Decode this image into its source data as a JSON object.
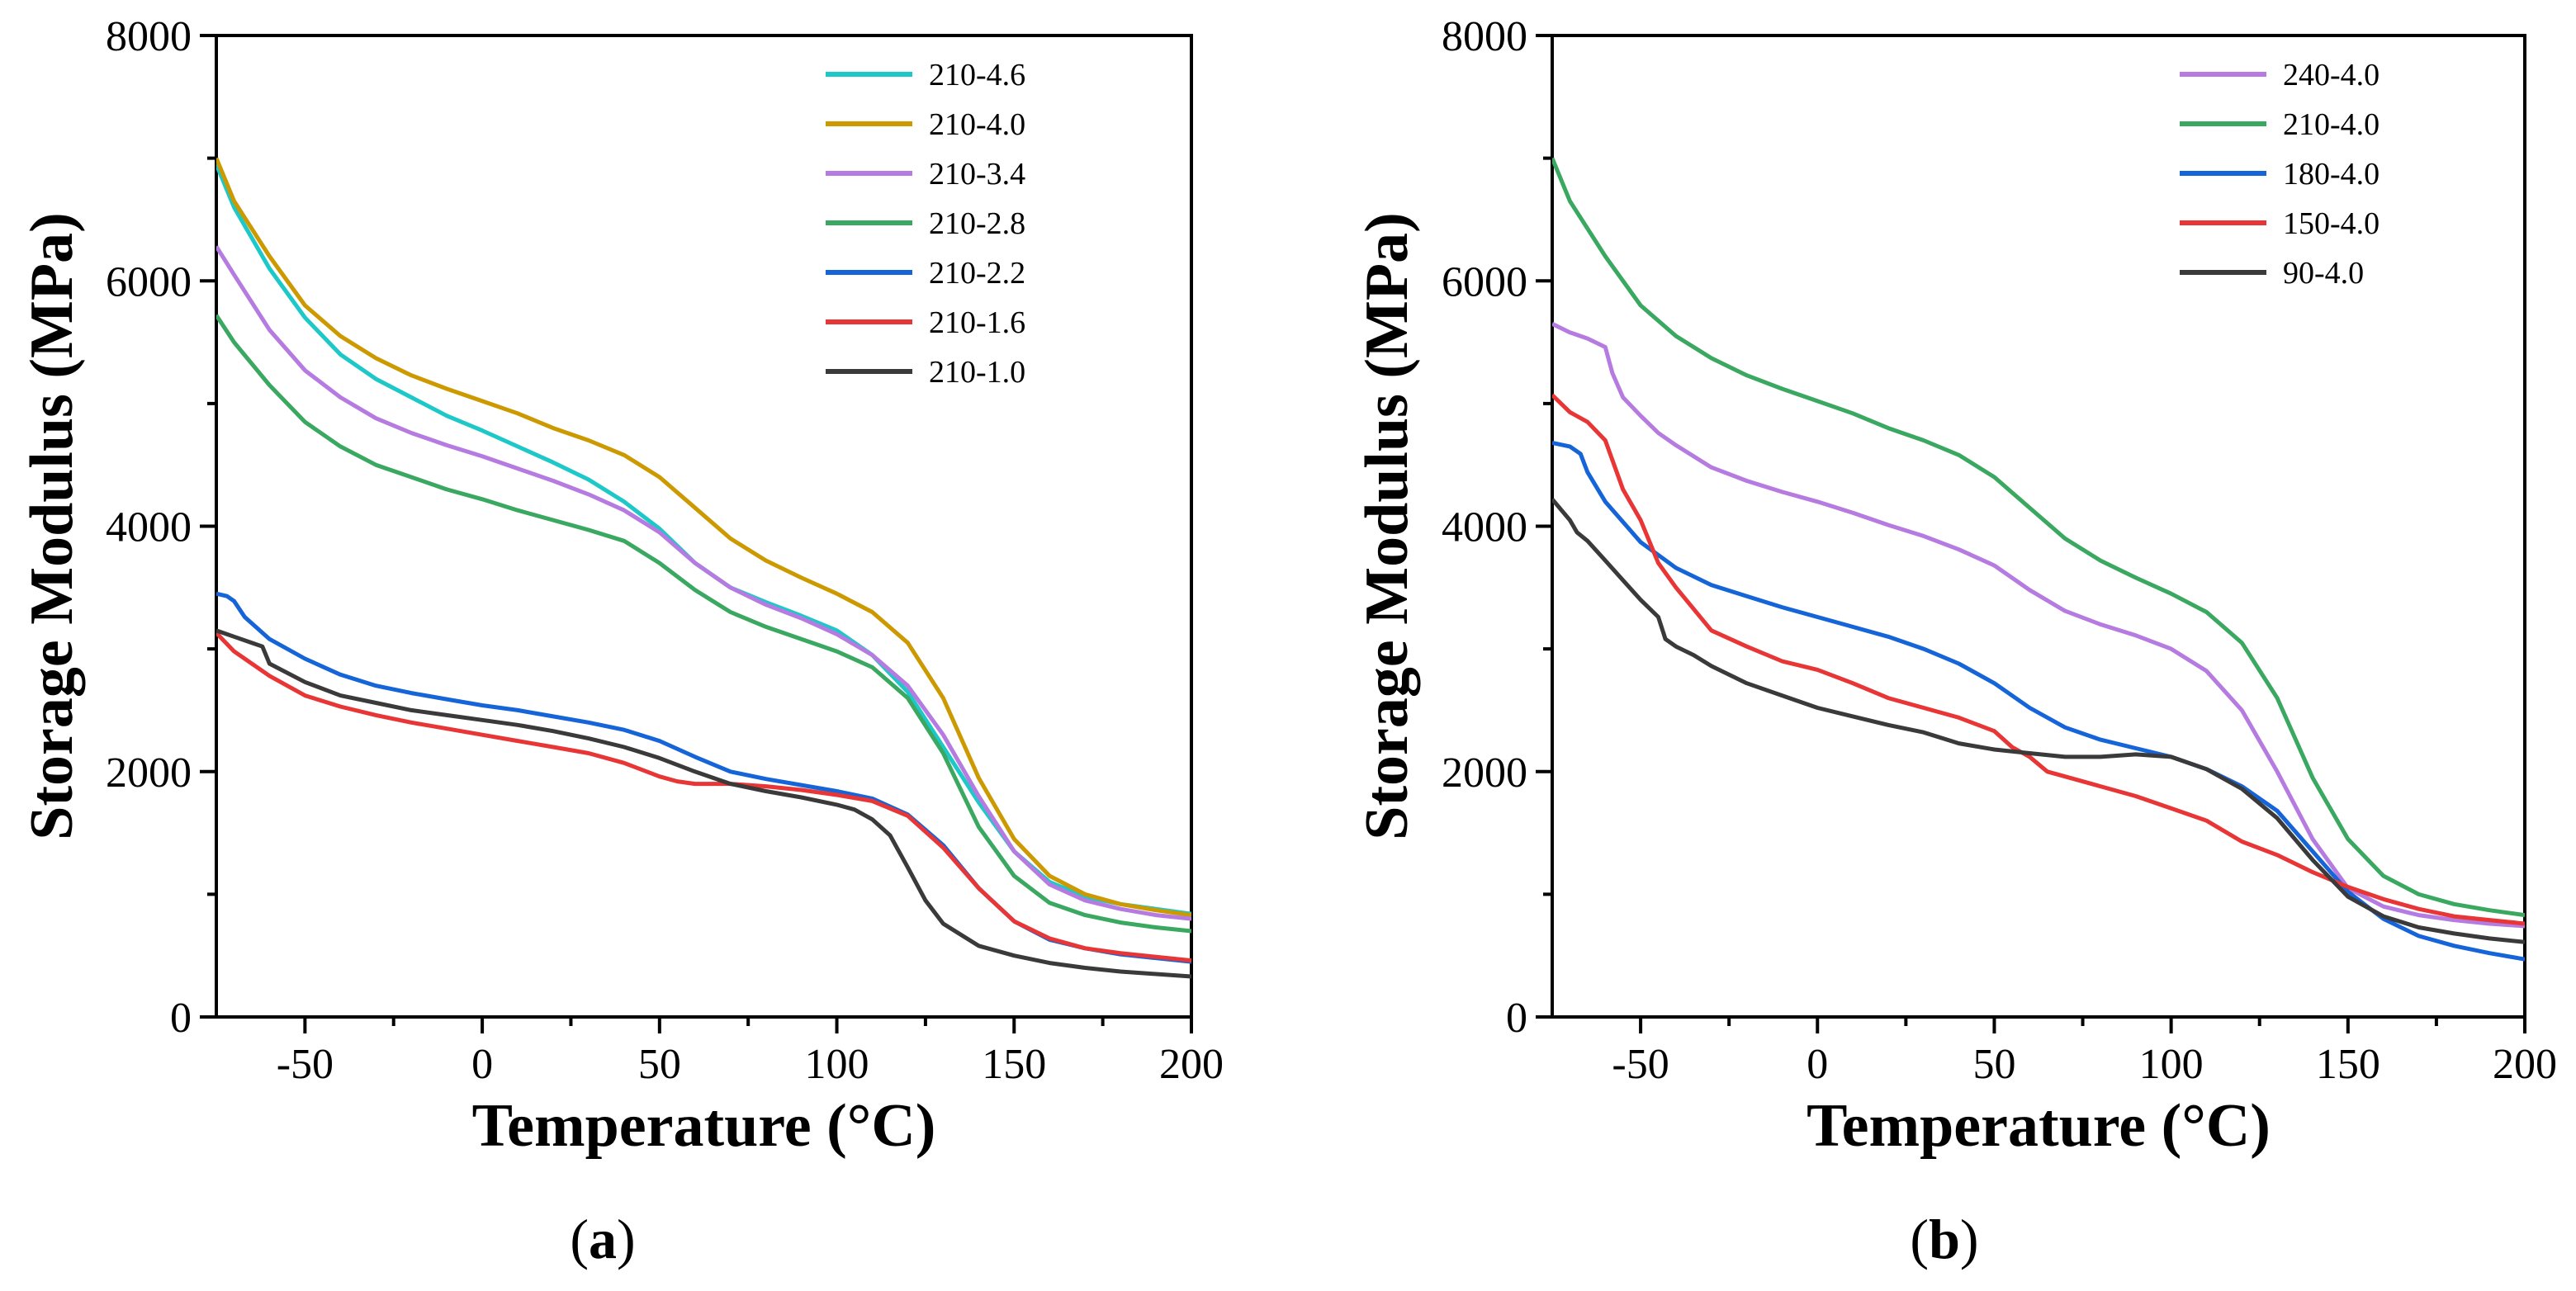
{
  "chart_data": [
    {
      "type": "line",
      "panel_label": "a",
      "xlabel": "Temperature (°C)",
      "ylabel": "Storage Modulus (MPa)",
      "xlim": [
        -75,
        200
      ],
      "ylim": [
        0,
        8000
      ],
      "xticks": [
        -50,
        0,
        50,
        100,
        150,
        200
      ],
      "yticks": [
        0,
        2000,
        4000,
        6000,
        8000
      ],
      "legend_position": "top-right",
      "series": [
        {
          "name": "210-4.6",
          "color": "#1ec8c8",
          "x": [
            -75,
            -70,
            -60,
            -50,
            -40,
            -30,
            -20,
            -10,
            0,
            10,
            20,
            30,
            40,
            50,
            60,
            70,
            80,
            90,
            100,
            110,
            120,
            130,
            140,
            150,
            160,
            170,
            180,
            190,
            200
          ],
          "y": [
            6950,
            6600,
            6100,
            5700,
            5400,
            5200,
            5050,
            4900,
            4780,
            4650,
            4520,
            4380,
            4200,
            3980,
            3700,
            3500,
            3380,
            3270,
            3150,
            2950,
            2650,
            2200,
            1750,
            1350,
            1100,
            980,
            920,
            880,
            840
          ]
        },
        {
          "name": "210-4.0",
          "color": "#cc9900",
          "x": [
            -75,
            -70,
            -60,
            -50,
            -40,
            -30,
            -20,
            -10,
            0,
            10,
            20,
            30,
            40,
            50,
            60,
            70,
            80,
            90,
            100,
            110,
            120,
            130,
            140,
            150,
            160,
            170,
            180,
            190,
            200
          ],
          "y": [
            7000,
            6650,
            6200,
            5800,
            5550,
            5370,
            5230,
            5120,
            5020,
            4920,
            4800,
            4700,
            4580,
            4400,
            4150,
            3900,
            3720,
            3580,
            3450,
            3300,
            3050,
            2600,
            1950,
            1450,
            1150,
            1000,
            920,
            870,
            830
          ]
        },
        {
          "name": "210-3.4",
          "color": "#b57be0",
          "x": [
            -75,
            -70,
            -60,
            -50,
            -40,
            -30,
            -20,
            -10,
            0,
            10,
            20,
            30,
            40,
            50,
            60,
            70,
            80,
            90,
            100,
            110,
            120,
            130,
            140,
            150,
            160,
            170,
            180,
            190,
            200
          ],
          "y": [
            6280,
            6050,
            5600,
            5270,
            5050,
            4880,
            4760,
            4660,
            4570,
            4470,
            4370,
            4260,
            4130,
            3950,
            3700,
            3500,
            3360,
            3250,
            3120,
            2950,
            2700,
            2300,
            1800,
            1350,
            1080,
            950,
            880,
            830,
            800
          ]
        },
        {
          "name": "210-2.8",
          "color": "#3aa860",
          "x": [
            -75,
            -70,
            -60,
            -50,
            -40,
            -30,
            -20,
            -10,
            0,
            10,
            20,
            30,
            40,
            50,
            60,
            70,
            80,
            90,
            100,
            110,
            120,
            130,
            140,
            150,
            160,
            170,
            180,
            190,
            200
          ],
          "y": [
            5720,
            5500,
            5150,
            4850,
            4650,
            4500,
            4400,
            4300,
            4220,
            4130,
            4050,
            3970,
            3880,
            3700,
            3480,
            3300,
            3180,
            3080,
            2980,
            2850,
            2600,
            2150,
            1550,
            1150,
            930,
            830,
            770,
            730,
            700
          ]
        },
        {
          "name": "210-2.2",
          "color": "#1565d8",
          "x": [
            -75,
            -72,
            -70,
            -67,
            -60,
            -50,
            -40,
            -30,
            -20,
            -10,
            0,
            10,
            20,
            30,
            40,
            50,
            60,
            70,
            80,
            90,
            100,
            110,
            120,
            130,
            140,
            150,
            160,
            170,
            180,
            190,
            200
          ],
          "y": [
            3450,
            3430,
            3390,
            3260,
            3080,
            2920,
            2790,
            2700,
            2640,
            2590,
            2540,
            2500,
            2450,
            2400,
            2340,
            2250,
            2120,
            2000,
            1940,
            1890,
            1840,
            1780,
            1650,
            1400,
            1050,
            780,
            630,
            560,
            510,
            480,
            450
          ]
        },
        {
          "name": "210-1.6",
          "color": "#e83535",
          "x": [
            -75,
            -70,
            -60,
            -50,
            -40,
            -30,
            -20,
            -10,
            0,
            10,
            20,
            30,
            40,
            50,
            55,
            60,
            70,
            80,
            90,
            100,
            110,
            120,
            130,
            140,
            150,
            160,
            170,
            180,
            190,
            200
          ],
          "y": [
            3130,
            2980,
            2780,
            2620,
            2530,
            2460,
            2400,
            2350,
            2300,
            2250,
            2200,
            2150,
            2070,
            1960,
            1920,
            1900,
            1900,
            1880,
            1850,
            1810,
            1760,
            1640,
            1380,
            1050,
            780,
            640,
            560,
            520,
            490,
            460
          ]
        },
        {
          "name": "210-1.0",
          "color": "#3a3a3a",
          "x": [
            -75,
            -70,
            -65,
            -62,
            -60,
            -50,
            -40,
            -30,
            -20,
            -10,
            0,
            10,
            20,
            30,
            40,
            50,
            60,
            70,
            80,
            90,
            100,
            105,
            110,
            115,
            120,
            125,
            130,
            140,
            150,
            160,
            170,
            180,
            190,
            200
          ],
          "y": [
            3150,
            3100,
            3050,
            3020,
            2880,
            2730,
            2620,
            2560,
            2500,
            2460,
            2420,
            2380,
            2330,
            2270,
            2200,
            2110,
            2000,
            1900,
            1840,
            1790,
            1730,
            1690,
            1610,
            1480,
            1220,
            950,
            760,
            580,
            500,
            440,
            400,
            370,
            350,
            330
          ]
        }
      ]
    },
    {
      "type": "line",
      "panel_label": "b",
      "xlabel": "Temperature (°C)",
      "ylabel": "Storage Modulus (MPa)",
      "xlim": [
        -75,
        200
      ],
      "ylim": [
        0,
        8000
      ],
      "xticks": [
        -50,
        0,
        50,
        100,
        150,
        200
      ],
      "yticks": [
        0,
        2000,
        4000,
        6000,
        8000
      ],
      "legend_position": "top-right",
      "series": [
        {
          "name": "240-4.0",
          "color": "#b57be0",
          "x": [
            -75,
            -70,
            -65,
            -60,
            -58,
            -55,
            -50,
            -45,
            -40,
            -30,
            -20,
            -10,
            0,
            10,
            20,
            30,
            40,
            50,
            60,
            70,
            80,
            90,
            100,
            110,
            120,
            130,
            140,
            150,
            160,
            170,
            180,
            190,
            200
          ],
          "y": [
            5650,
            5580,
            5530,
            5460,
            5250,
            5050,
            4900,
            4760,
            4660,
            4480,
            4370,
            4280,
            4200,
            4110,
            4010,
            3920,
            3810,
            3680,
            3480,
            3310,
            3200,
            3110,
            3000,
            2820,
            2500,
            2000,
            1450,
            1050,
            900,
            830,
            790,
            760,
            740
          ]
        },
        {
          "name": "210-4.0",
          "color": "#3aa860",
          "x": [
            -75,
            -70,
            -60,
            -50,
            -40,
            -30,
            -20,
            -10,
            0,
            10,
            20,
            30,
            40,
            50,
            60,
            70,
            80,
            90,
            100,
            110,
            120,
            130,
            140,
            150,
            160,
            170,
            180,
            190,
            200
          ],
          "y": [
            7000,
            6650,
            6200,
            5800,
            5550,
            5370,
            5230,
            5120,
            5020,
            4920,
            4800,
            4700,
            4580,
            4400,
            4150,
            3900,
            3720,
            3580,
            3450,
            3300,
            3050,
            2600,
            1950,
            1450,
            1150,
            1000,
            920,
            870,
            830
          ]
        },
        {
          "name": "180-4.0",
          "color": "#1565d8",
          "x": [
            -75,
            -70,
            -67,
            -65,
            -60,
            -50,
            -40,
            -30,
            -20,
            -10,
            0,
            10,
            20,
            30,
            40,
            50,
            60,
            70,
            80,
            90,
            100,
            110,
            120,
            130,
            140,
            150,
            160,
            170,
            180,
            190,
            200
          ],
          "y": [
            4680,
            4650,
            4590,
            4440,
            4200,
            3870,
            3660,
            3520,
            3430,
            3340,
            3260,
            3180,
            3100,
            3000,
            2880,
            2720,
            2520,
            2360,
            2260,
            2190,
            2120,
            2020,
            1880,
            1680,
            1350,
            1020,
            800,
            660,
            580,
            520,
            470
          ]
        },
        {
          "name": "150-4.0",
          "color": "#e83535",
          "x": [
            -75,
            -70,
            -65,
            -60,
            -55,
            -50,
            -45,
            -40,
            -30,
            -20,
            -10,
            0,
            10,
            20,
            30,
            40,
            50,
            55,
            60,
            65,
            70,
            80,
            90,
            100,
            110,
            120,
            130,
            140,
            150,
            160,
            170,
            180,
            190,
            200
          ],
          "y": [
            5070,
            4930,
            4850,
            4700,
            4300,
            4050,
            3700,
            3500,
            3150,
            3020,
            2900,
            2830,
            2720,
            2600,
            2520,
            2440,
            2330,
            2200,
            2120,
            2000,
            1960,
            1880,
            1800,
            1700,
            1600,
            1430,
            1320,
            1180,
            1060,
            960,
            880,
            820,
            790,
            760
          ]
        },
        {
          "name": "90-4.0",
          "color": "#3a3a3a",
          "x": [
            -75,
            -70,
            -68,
            -65,
            -60,
            -55,
            -50,
            -45,
            -43,
            -40,
            -35,
            -30,
            -20,
            -10,
            0,
            10,
            20,
            30,
            40,
            50,
            60,
            70,
            80,
            90,
            100,
            110,
            120,
            130,
            140,
            150,
            160,
            170,
            180,
            190,
            200
          ],
          "y": [
            4220,
            4050,
            3950,
            3880,
            3720,
            3560,
            3400,
            3260,
            3080,
            3020,
            2950,
            2860,
            2720,
            2620,
            2520,
            2450,
            2380,
            2320,
            2230,
            2180,
            2150,
            2120,
            2120,
            2140,
            2120,
            2020,
            1860,
            1620,
            1280,
            980,
            820,
            730,
            680,
            640,
            610
          ]
        }
      ]
    }
  ]
}
